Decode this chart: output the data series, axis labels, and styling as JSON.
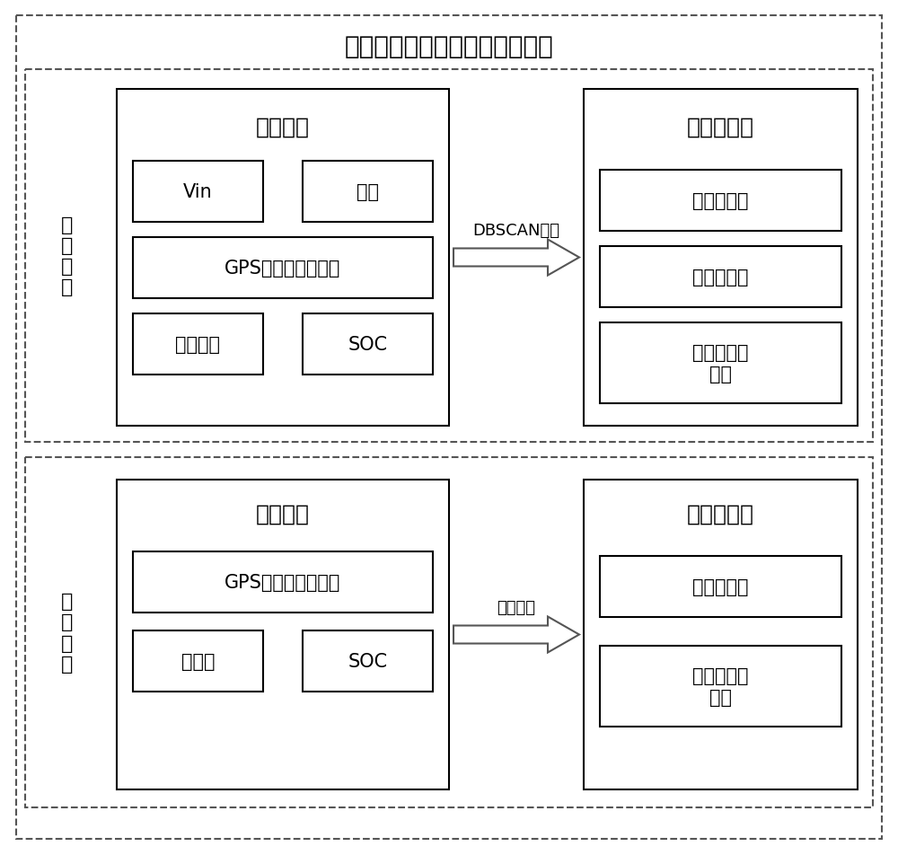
{
  "title": "新能源汽车国家监测与管理平台",
  "title_fontsize": 20,
  "bg_color": "#ffffff",
  "text_color": "#000000",
  "static_label": "静\n态\n计\n算",
  "dynamic_label": "动\n态\n计\n算",
  "top": {
    "platform_title": "平台数据",
    "arrow_label": "DBSCAN算法",
    "station_title": "充电站信息",
    "boxes_left": [
      {
        "text": "Vin"
      },
      {
        "text": "时间"
      },
      {
        "text": "GPS（经度、纬度）"
      },
      {
        "text": "充电状态"
      },
      {
        "text": "SOC"
      }
    ],
    "boxes_right": [
      {
        "text": "充电站位置"
      },
      {
        "text": "充电桩数量"
      },
      {
        "text": "当前充电桩\n状态"
      }
    ]
  },
  "bottom": {
    "vehicle_title": "车辆数据",
    "arrow_label": "遗传算法",
    "station_title": "充电站信息",
    "boxes_left": [
      {
        "text": "GPS（经度、纬度）"
      },
      {
        "text": "目的地"
      },
      {
        "text": "SOC"
      }
    ],
    "boxes_right": [
      {
        "text": "充电站位置"
      },
      {
        "text": "当前充电桩\n状态"
      }
    ]
  }
}
